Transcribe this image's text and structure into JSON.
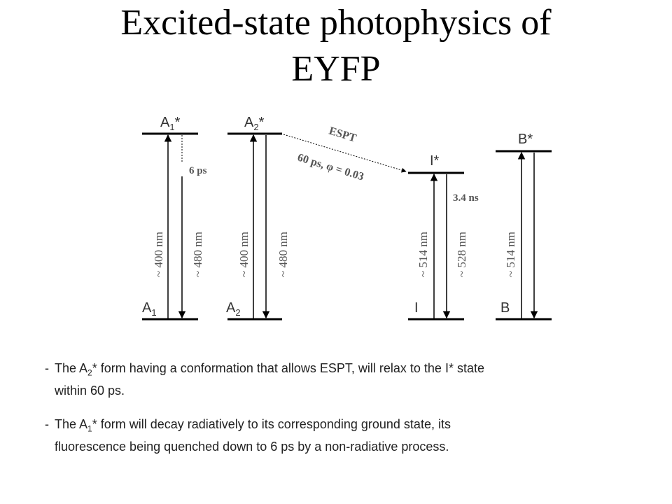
{
  "title_line1": "Excited-state photophysics of",
  "title_line2": "EYFP",
  "states": {
    "A1_excited": "A",
    "A1_excited_sub": "1",
    "A2_excited": "A",
    "A2_excited_sub": "2",
    "I_excited": "I*",
    "B_excited": "B*",
    "A1_ground": "A",
    "A1_ground_sub": "1",
    "A2_ground": "A",
    "A2_ground_sub": "2",
    "I_ground": "I",
    "B_ground": "B",
    "star": "*"
  },
  "transitions": {
    "a1_abs": "~ 400 nm",
    "a1_em": "~ 480 nm",
    "a2_abs": "~ 400 nm",
    "a2_em": "~ 480 nm",
    "i_abs": "~ 514 nm",
    "i_em": "~ 528 nm",
    "b_abs": "~ 514 nm",
    "a1_nonrad": "6 ps",
    "espt_label": "ESPT",
    "espt_rate": "60 ps, φ = 0.03",
    "i_lifetime": "3.4 ns"
  },
  "bullets": {
    "b1_pre": "The A",
    "b1_sub": "2",
    "b1_post": "* form having a conformation that allows ESPT, will relax to the I* state",
    "b1_line2": "within 60 ps.",
    "b2_pre": "The A",
    "b2_sub": "1",
    "b2_post": "* form will decay radiatively to its corresponding ground state, its",
    "b2_line2": "fluorescence being quenched down to 6 ps by a non-radiative process.",
    "dash": "-"
  }
}
